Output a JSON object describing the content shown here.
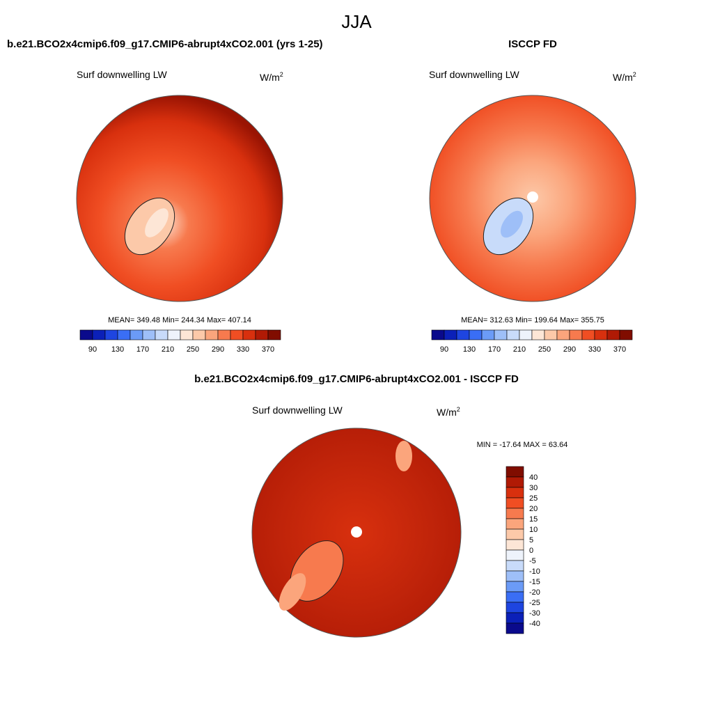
{
  "title": "JJA",
  "panels": [
    {
      "title": "b.e21.BCO2x4cmip6.f09_g17.CMIP6-abrupt4xCO2.001 (yrs 1-25)",
      "field_label": "Surf downwelling LW",
      "units": "W/m",
      "units_sup": "2",
      "stats": "MEAN= 349.48  Min= 244.34  Max= 407.14",
      "colorbar": {
        "labels": [
          "90",
          "130",
          "170",
          "210",
          "250",
          "290",
          "330",
          "370"
        ],
        "colors": [
          "#0a0a8c",
          "#0b20b8",
          "#1e45e0",
          "#3a6ef5",
          "#6b9bf7",
          "#9ebff8",
          "#c8dbfa",
          "#eef3fb",
          "#fde6d6",
          "#fcc9a9",
          "#fba57c",
          "#f77a4e",
          "#f04e23",
          "#d8300e",
          "#b01a05",
          "#800d00"
        ]
      }
    },
    {
      "title": "ISCCP FD",
      "field_label": "Surf downwelling LW",
      "units": "W/m",
      "units_sup": "2",
      "stats": "MEAN= 312.63  Min= 199.64  Max= 355.75",
      "colorbar": {
        "labels": [
          "90",
          "130",
          "170",
          "210",
          "250",
          "290",
          "330",
          "370"
        ],
        "colors": [
          "#0a0a8c",
          "#0b20b8",
          "#1e45e0",
          "#3a6ef5",
          "#6b9bf7",
          "#9ebff8",
          "#c8dbfa",
          "#eef3fb",
          "#fde6d6",
          "#fcc9a9",
          "#fba57c",
          "#f77a4e",
          "#f04e23",
          "#d8300e",
          "#b01a05",
          "#800d00"
        ]
      }
    },
    {
      "title": "b.e21.BCO2x4cmip6.f09_g17.CMIP6-abrupt4xCO2.001 - ISCCP FD",
      "field_label": "Surf downwelling LW",
      "units": "W/m",
      "units_sup": "2",
      "stats": "MIN = -17.64 MAX =  63.64",
      "colorbar": {
        "labels": [
          "40",
          "30",
          "25",
          "20",
          "15",
          "10",
          "5",
          "0",
          "-5",
          "-10",
          "-15",
          "-20",
          "-25",
          "-30",
          "-40"
        ],
        "colors": [
          "#800d00",
          "#b01a05",
          "#d8300e",
          "#f04e23",
          "#f77a4e",
          "#fba57c",
          "#fcc9a9",
          "#fde6d6",
          "#eef3fb",
          "#c8dbfa",
          "#9ebff8",
          "#6b9bf7",
          "#3a6ef5",
          "#1e45e0",
          "#0b20b8",
          "#0a0a8c"
        ]
      }
    }
  ]
}
